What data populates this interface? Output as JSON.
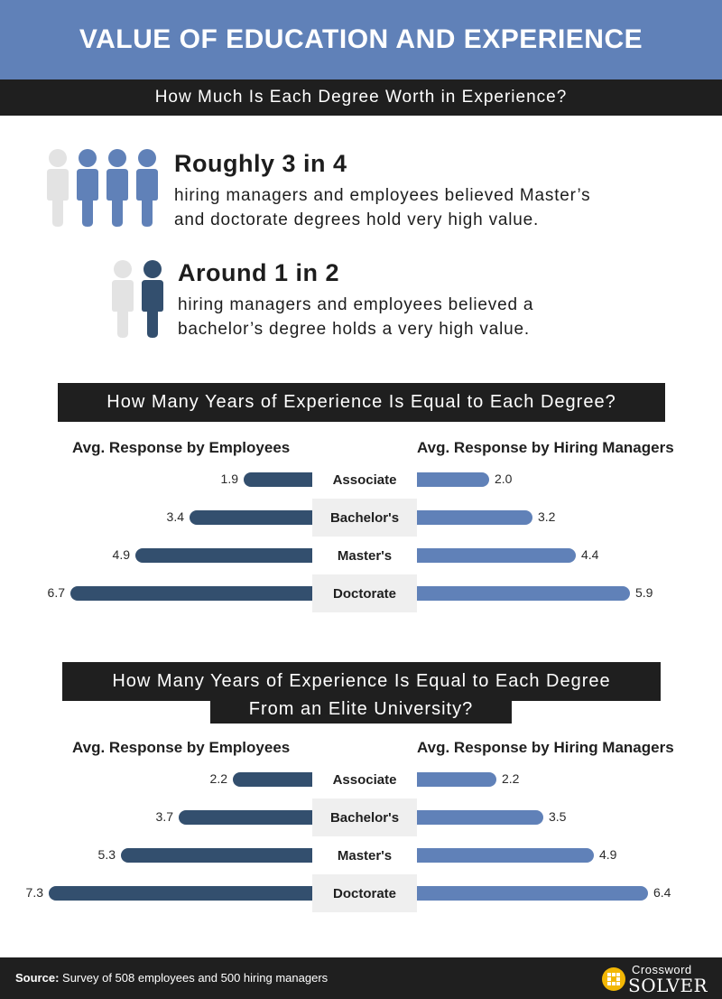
{
  "header": {
    "title": "VALUE OF EDUCATION AND EXPERIENCE"
  },
  "subheader": {
    "text": "How Much Is Each Degree Worth in Experience?"
  },
  "stats": [
    {
      "headline": "Roughly 3 in 4",
      "line1": "hiring managers and employees believed Master’s",
      "line2": "and doctorate degrees hold very high value."
    },
    {
      "headline": "Around 1 in 2",
      "line1": "hiring managers and employees believed a",
      "line2": "bachelor’s degree holds a very high value."
    }
  ],
  "colors": {
    "accent": "#6081b8",
    "employee_bar": "#334f6e",
    "manager_bar": "#6081b8",
    "dark": "#1f1f1f",
    "gray_person": "#e3e3e3"
  },
  "chart_data": [
    {
      "type": "bar",
      "title": "How Many Years of Experience Is Equal to Each Degree?",
      "categories": [
        "Associate",
        "Bachelor's",
        "Master's",
        "Doctorate"
      ],
      "series": [
        {
          "name": "Avg. Response by Employees",
          "values": [
            1.9,
            3.4,
            4.9,
            6.7
          ]
        },
        {
          "name": "Avg. Response by Hiring Managers",
          "values": [
            2.0,
            3.2,
            4.4,
            5.9
          ]
        }
      ]
    },
    {
      "type": "bar",
      "title_line1": "How Many Years of Experience Is Equal to Each Degree",
      "title_line2": "From an Elite University?",
      "categories": [
        "Associate",
        "Bachelor's",
        "Master's",
        "Doctorate"
      ],
      "series": [
        {
          "name": "Avg. Response by Employees",
          "values": [
            2.2,
            3.7,
            5.3,
            7.3
          ]
        },
        {
          "name": "Avg. Response by Hiring Managers",
          "values": [
            2.2,
            3.5,
            4.9,
            6.4
          ]
        }
      ]
    }
  ],
  "footer": {
    "source_label": "Source:",
    "source_text": " Survey of 508 employees and 500 hiring managers",
    "logo_top": "Crossword",
    "logo_bottom": "SOLVER"
  }
}
